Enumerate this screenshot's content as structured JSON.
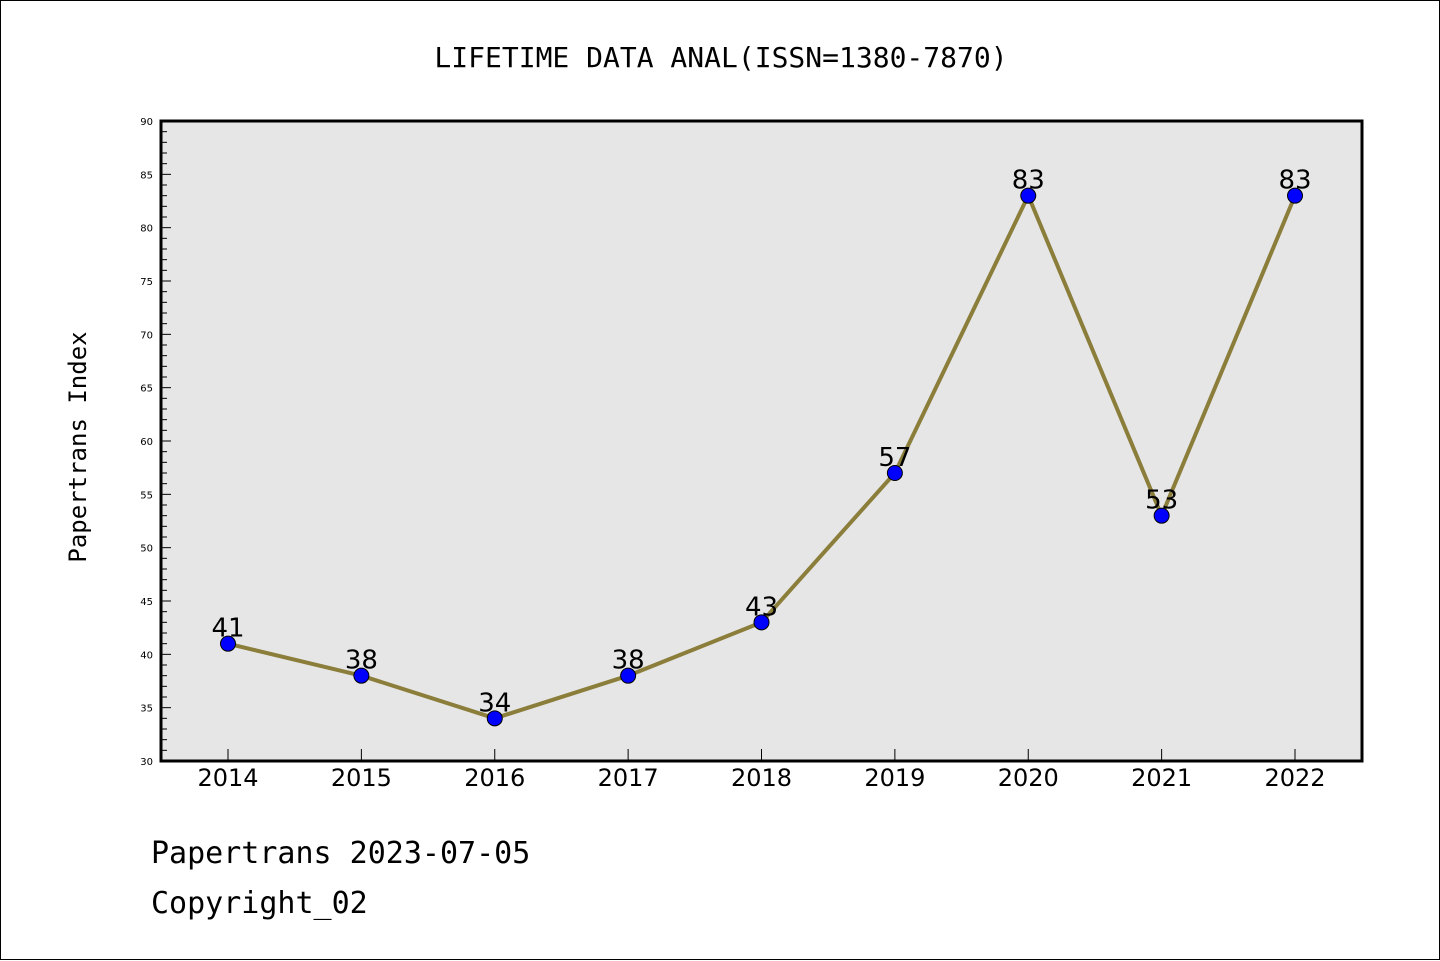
{
  "chart_data": {
    "type": "line",
    "title": "LIFETIME DATA ANAL(ISSN=1380-7870)",
    "xlabel": "",
    "ylabel": "Papertrans Index",
    "categories": [
      "2014",
      "2015",
      "2016",
      "2017",
      "2018",
      "2019",
      "2020",
      "2021",
      "2022"
    ],
    "series": [
      {
        "values": [
          41,
          38,
          34,
          38,
          43,
          57,
          83,
          53,
          83
        ]
      }
    ],
    "ylim": [
      30,
      90
    ],
    "yticks": [
      30,
      35,
      40,
      45,
      50,
      55,
      60,
      65,
      70,
      75,
      80,
      85,
      90
    ],
    "grid": false,
    "line_color": "#8b7d3a",
    "marker_color": "#0000ff",
    "plot_background": "#e6e6e6"
  },
  "footer": {
    "line1": "Papertrans 2023-07-05",
    "line2": "Copyright_02"
  }
}
